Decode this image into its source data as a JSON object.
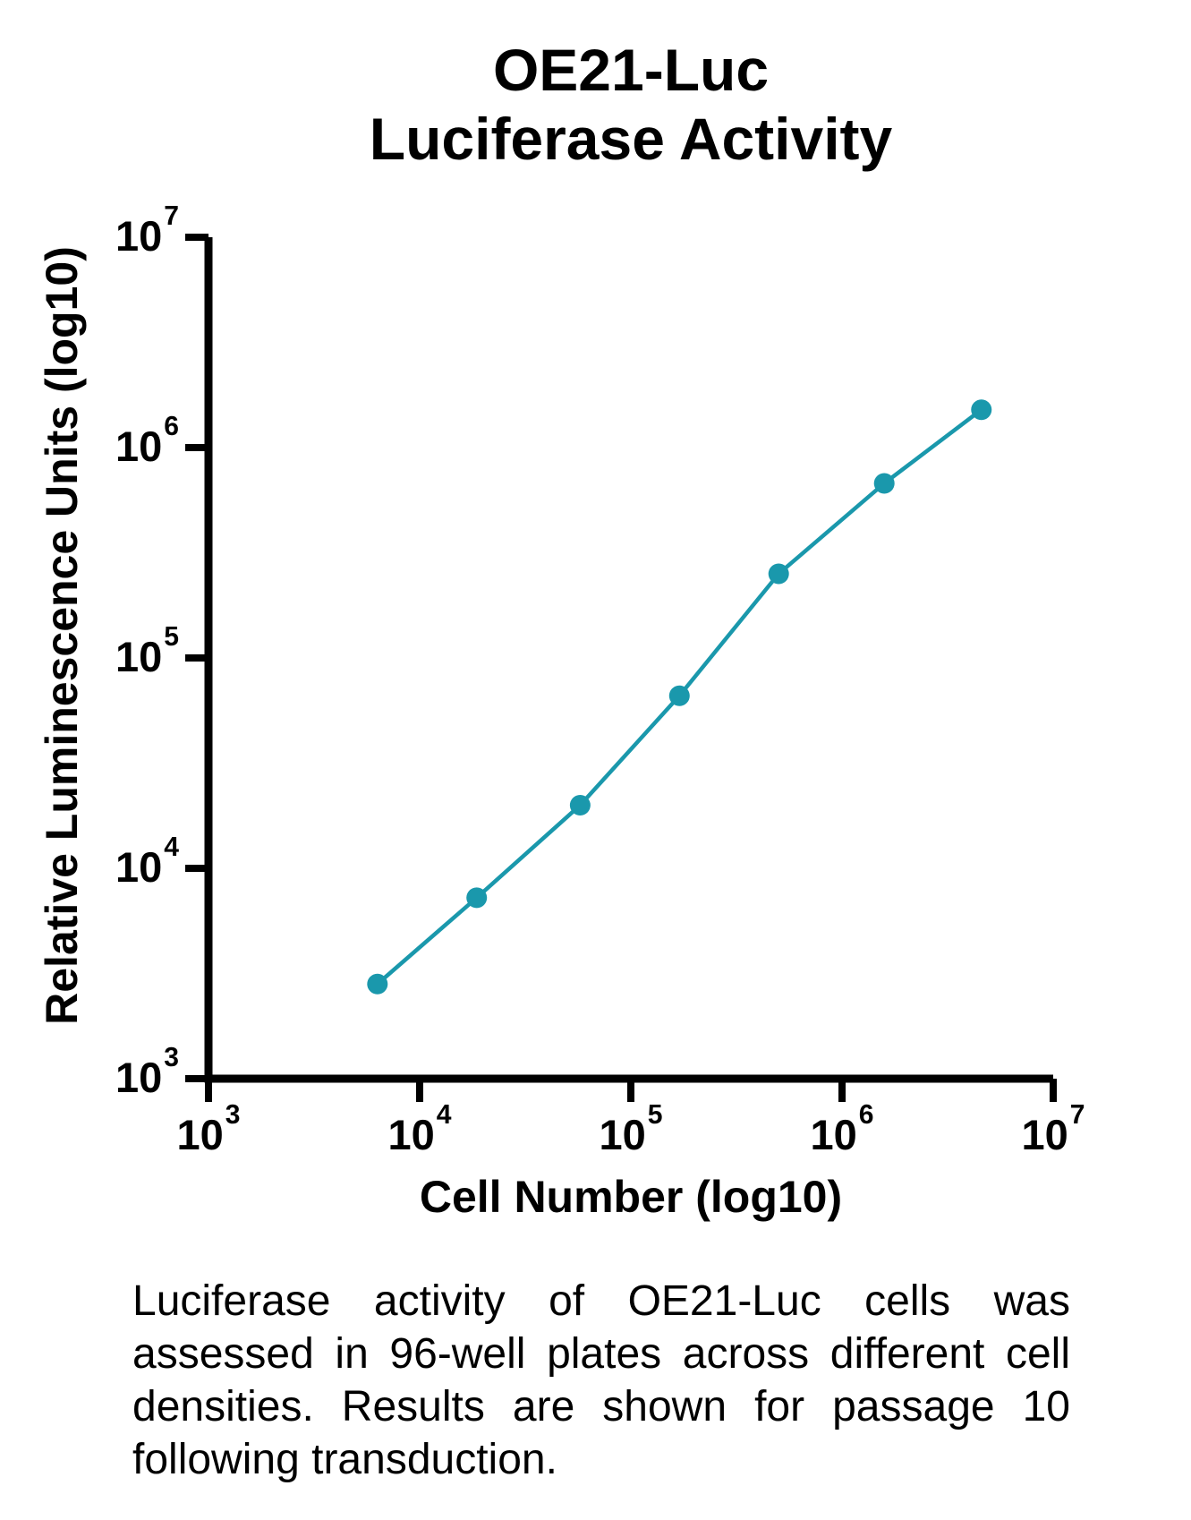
{
  "title": {
    "line1": "OE21-Luc",
    "line2": "Luciferase Activity"
  },
  "chart": {
    "y_axis_label": "Relative Luminescence Units (log10)",
    "x_axis_label": "Cell Number (log10)",
    "y_ticks": [
      {
        "base": "10",
        "exp": "7"
      },
      {
        "base": "10",
        "exp": "6"
      },
      {
        "base": "10",
        "exp": "5"
      },
      {
        "base": "10",
        "exp": "4"
      },
      {
        "base": "10",
        "exp": "3"
      }
    ],
    "x_ticks": [
      {
        "base": "10",
        "exp": "3"
      },
      {
        "base": "10",
        "exp": "4"
      },
      {
        "base": "10",
        "exp": "5"
      },
      {
        "base": "10",
        "exp": "6"
      },
      {
        "base": "10",
        "exp": "7"
      }
    ]
  },
  "chart_data": {
    "type": "line",
    "title": "OE21-Luc Luciferase Activity",
    "xlabel": "Cell Number (log10)",
    "ylabel": "Relative Luminescence Units (log10)",
    "x_scale": "log10",
    "y_scale": "log10",
    "xlim": [
      1000,
      10000000
    ],
    "ylim": [
      1000,
      10000000
    ],
    "grid": false,
    "legend": false,
    "series": [
      {
        "name": "OE21-Luc",
        "color": "#1A98AC",
        "marker": "circle",
        "points": [
          {
            "x": 6300,
            "y": 2850,
            "x_log10": 3.8,
            "y_log10": 3.45
          },
          {
            "x": 18800,
            "y": 7200,
            "x_log10": 4.27,
            "y_log10": 3.86
          },
          {
            "x": 57500,
            "y": 20000,
            "x_log10": 4.76,
            "y_log10": 4.3
          },
          {
            "x": 170000,
            "y": 66000,
            "x_log10": 5.23,
            "y_log10": 4.82
          },
          {
            "x": 500000,
            "y": 250000,
            "x_log10": 5.7,
            "y_log10": 5.4
          },
          {
            "x": 1585000,
            "y": 675000,
            "x_log10": 6.2,
            "y_log10": 5.83
          },
          {
            "x": 4570000,
            "y": 1520000,
            "x_log10": 6.66,
            "y_log10": 6.18
          }
        ]
      }
    ]
  },
  "caption": {
    "lines": [
      "Luciferase activity of OE21-Luc cells was",
      "assessed in 96-well plates across different cell",
      "densities. Results are shown for passage 10",
      "following transduction."
    ]
  },
  "colors": {
    "series": "#1A98AC",
    "axis": "#000000",
    "background": "#FFFFFF",
    "text": "#000000"
  }
}
